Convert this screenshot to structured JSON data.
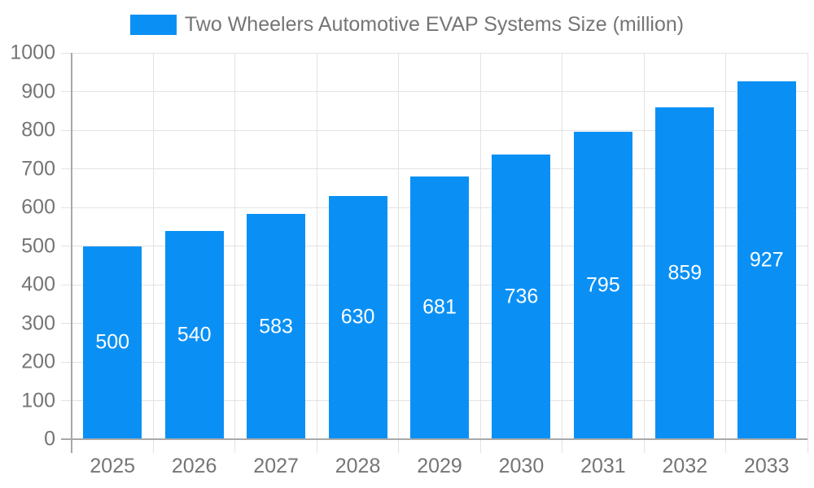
{
  "legend": {
    "label": "Two Wheelers Automotive EVAP Systems Size (million)"
  },
  "chart_data": {
    "type": "bar",
    "title": "Two Wheelers Automotive EVAP Systems Size (million)",
    "series_name": "Two Wheelers Automotive EVAP Systems Size (million)",
    "categories": [
      "2025",
      "2026",
      "2027",
      "2028",
      "2029",
      "2030",
      "2031",
      "2032",
      "2033"
    ],
    "values": [
      500,
      540,
      583,
      630,
      681,
      736,
      795,
      859,
      927
    ],
    "value_labels": [
      "500",
      "540",
      "583",
      "630",
      "681",
      "736",
      "795",
      "859",
      "927"
    ],
    "xlabel": "",
    "ylabel": "",
    "ylim": [
      0,
      1000
    ],
    "y_tick_step": 100,
    "y_tick_labels": [
      "0",
      "100",
      "200",
      "300",
      "400",
      "500",
      "600",
      "700",
      "800",
      "900",
      "1000"
    ],
    "grid": true,
    "legend_position": "top",
    "colors": {
      "bar": "#0A90F5",
      "value_label": "#FFFFFF",
      "axis_text": "#757575",
      "legend_text": "#757575",
      "gridline": "#E3E3E3",
      "axis_line": "#A8A8A8"
    }
  }
}
